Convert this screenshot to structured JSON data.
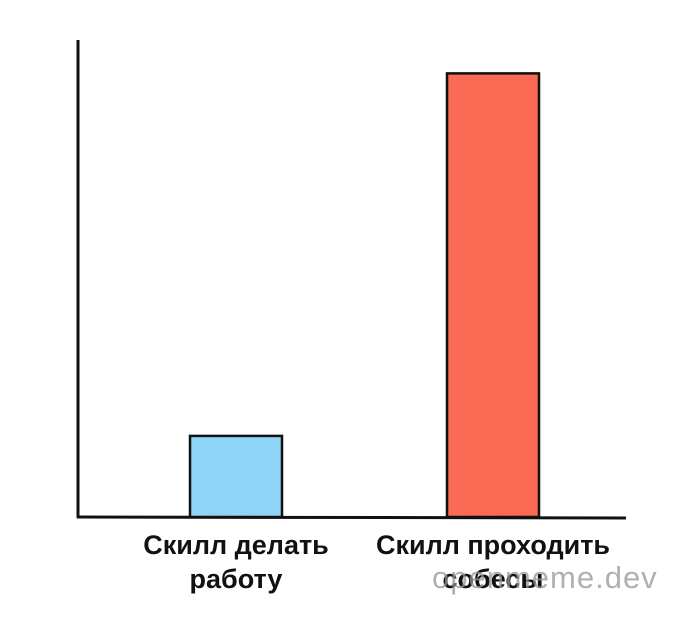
{
  "chart_data": {
    "type": "bar",
    "categories": [
      "Скилл делать работу",
      "Скилл проходить собесы"
    ],
    "series": [
      {
        "colors": [
          "#8fd4f6",
          "#fb6a55"
        ],
        "values": [
          17,
          93
        ]
      }
    ],
    "ylim": [
      0,
      100
    ],
    "watermark": "openmeme.dev"
  }
}
